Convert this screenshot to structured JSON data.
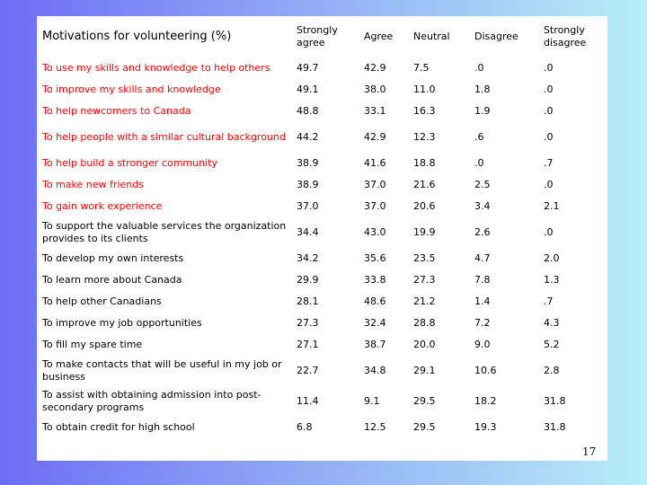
{
  "table": {
    "headers": [
      "Motivations for volunteering (%)",
      "Strongly agree",
      "Agree",
      "Neutral",
      "Disagree",
      "Strongly disagree"
    ],
    "rows": [
      {
        "label": "To use my skills and knowledge to help others",
        "values": [
          "49.7",
          "42.9",
          "7.5",
          ".0",
          ".0"
        ],
        "highlight": true
      },
      {
        "label": "To improve my skills and knowledge",
        "values": [
          "49.1",
          "38.0",
          "11.0",
          "1.8",
          ".0"
        ],
        "highlight": true
      },
      {
        "label": "To help newcomers to Canada",
        "values": [
          "48.8",
          "33.1",
          "16.3",
          "1.9",
          ".0"
        ],
        "highlight": true
      },
      {
        "label": "To help people with a similar cultural background",
        "values": [
          "44.2",
          "42.9",
          "12.3",
          ".6",
          ".0"
        ],
        "highlight": true
      },
      {
        "label": "To help build a stronger community",
        "values": [
          "38.9",
          "41.6",
          "18.8",
          ".0",
          ".7"
        ],
        "highlight": true
      },
      {
        "label": "To make new friends",
        "values": [
          "38.9",
          "37.0",
          "21.6",
          "2.5",
          ".0"
        ],
        "highlight": true
      },
      {
        "label": "To gain work experience",
        "values": [
          "37.0",
          "37.0",
          "20.6",
          "3.4",
          "2.1"
        ],
        "highlight": true
      },
      {
        "label": "To support the valuable services the organization provides to its clients",
        "values": [
          "34.4",
          "43.0",
          "19.9",
          "2.6",
          ".0"
        ],
        "highlight": false
      },
      {
        "label": "To develop my own interests",
        "values": [
          "34.2",
          "35.6",
          "23.5",
          "4.7",
          "2.0"
        ],
        "highlight": false
      },
      {
        "label": "To learn more about Canada",
        "values": [
          "29.9",
          "33.8",
          "27.3",
          "7.8",
          "1.3"
        ],
        "highlight": false
      },
      {
        "label": "To help other Canadians",
        "values": [
          "28.1",
          "48.6",
          "21.2",
          "1.4",
          ".7"
        ],
        "highlight": false
      },
      {
        "label": "To improve my job opportunities",
        "values": [
          "27.3",
          "32.4",
          "28.8",
          "7.2",
          "4.3"
        ],
        "highlight": false
      },
      {
        "label": "To fill my spare time",
        "values": [
          "27.1",
          "38.7",
          "20.0",
          "9.0",
          "5.2"
        ],
        "highlight": false
      },
      {
        "label": "To make contacts that will be useful in my job or business",
        "values": [
          "22.7",
          "34.8",
          "29.1",
          "10.6",
          "2.8"
        ],
        "highlight": false
      },
      {
        "label": "To assist with obtaining admission into post-secondary programs",
        "values": [
          "11.4",
          "9.1",
          "29.5",
          "18.2",
          "31.8"
        ],
        "highlight": false
      },
      {
        "label": "To obtain credit for high school",
        "values": [
          "6.8",
          "12.5",
          "29.5",
          "19.3",
          "31.8"
        ],
        "highlight": false
      }
    ]
  },
  "page_number": "17",
  "colors": {
    "highlight_text": "#ff0000",
    "normal_text": "#000000"
  }
}
